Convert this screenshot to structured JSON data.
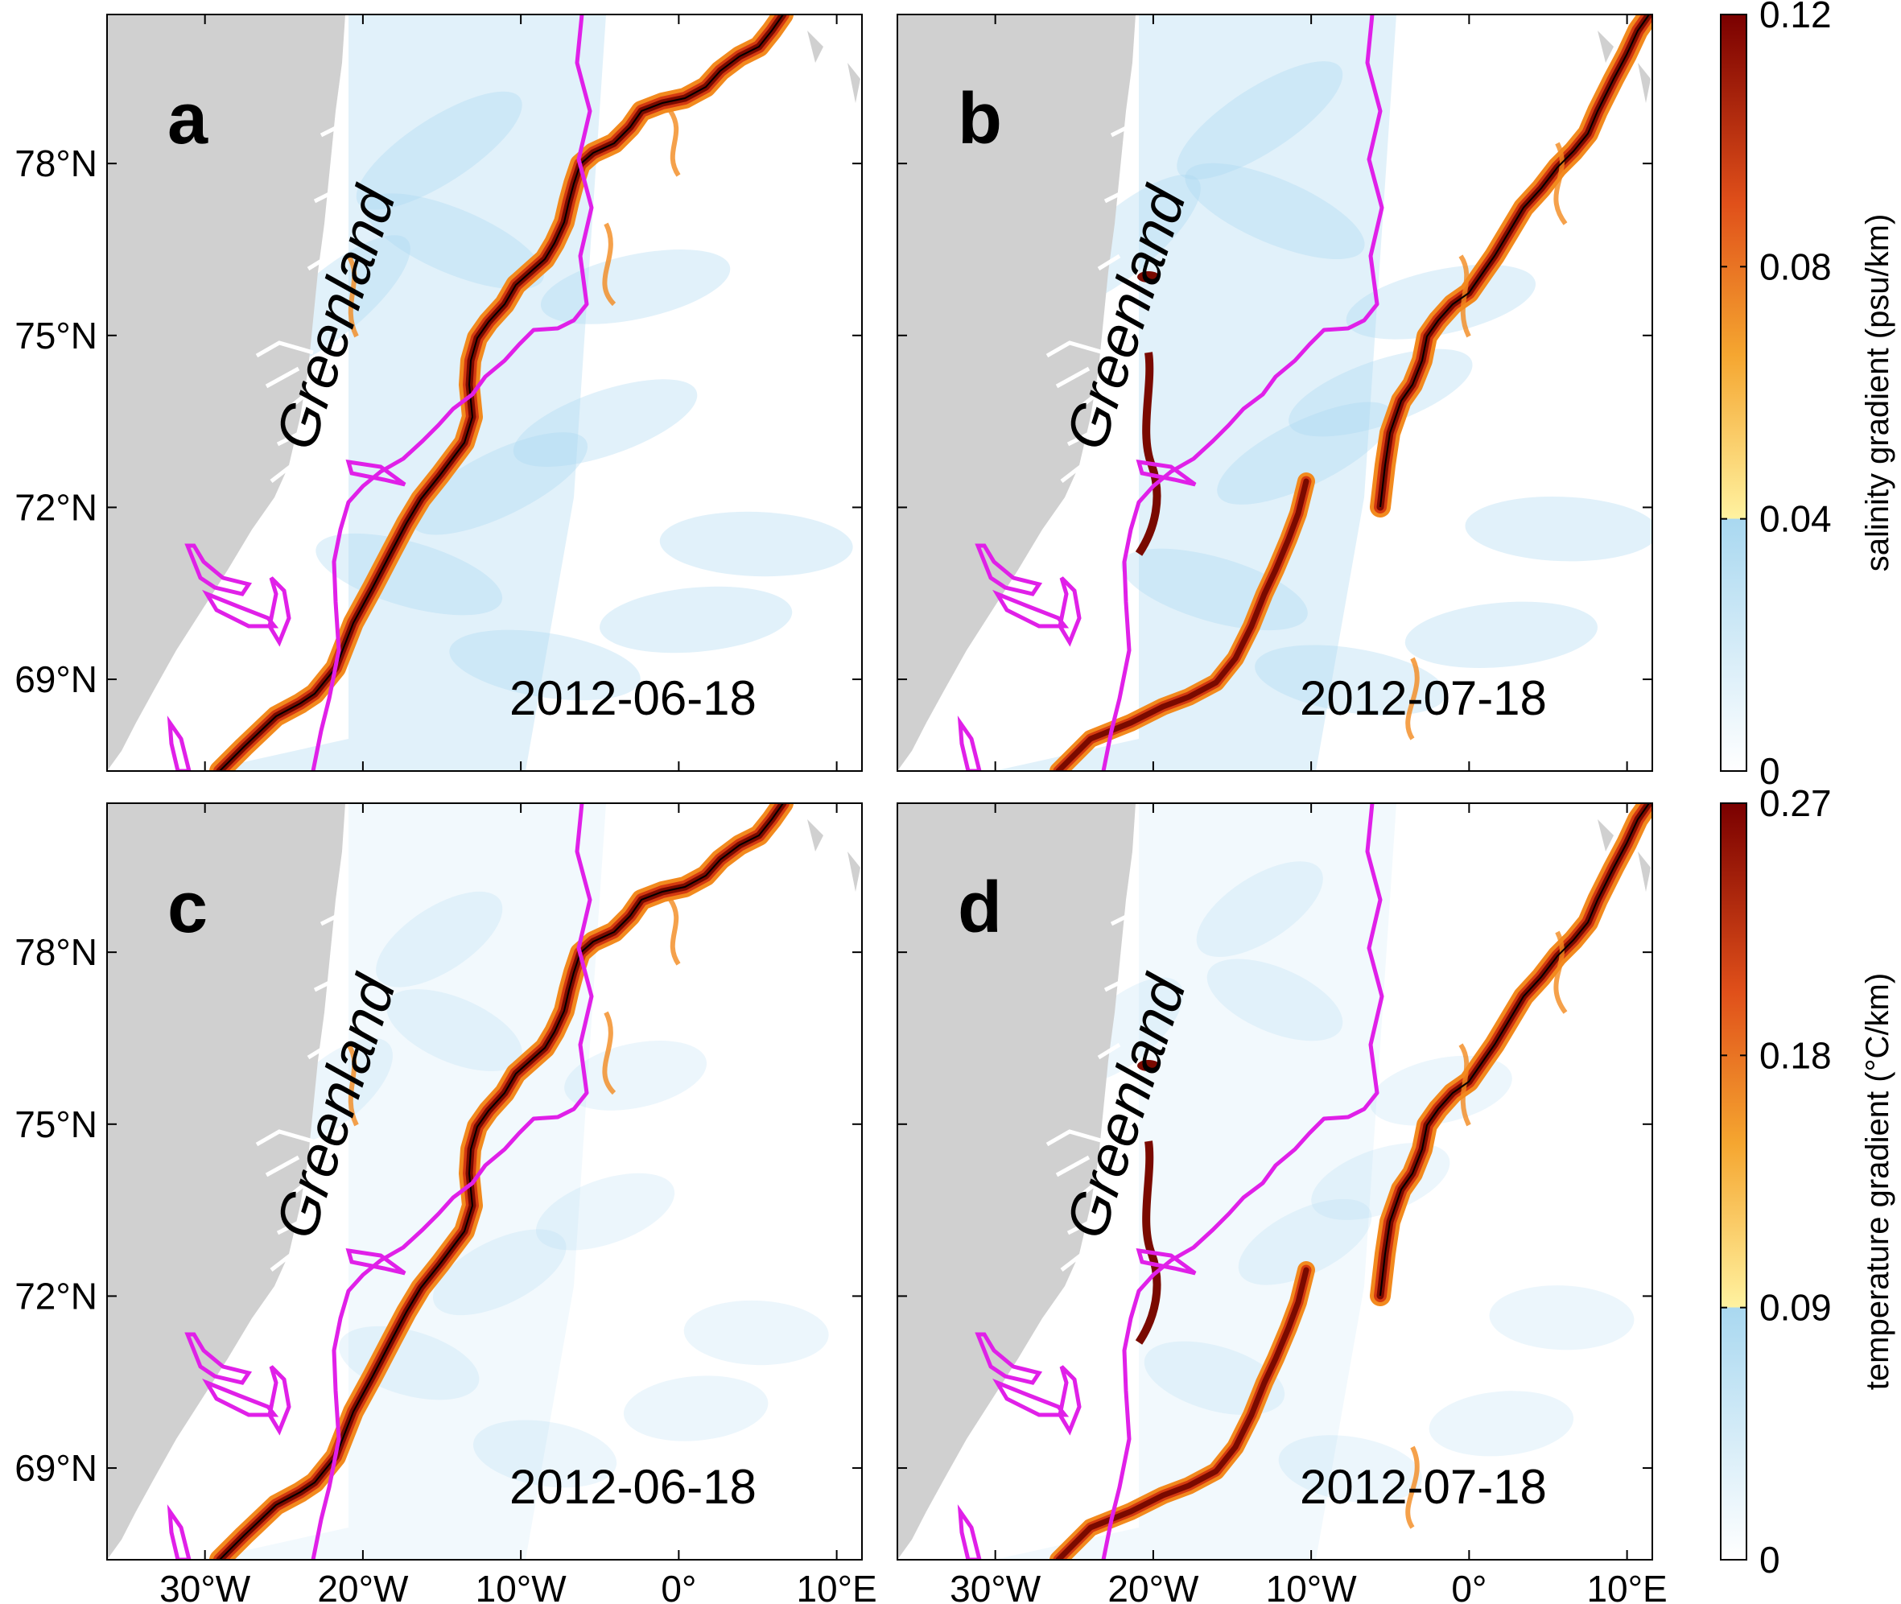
{
  "chart_data": {
    "type": "heatmap",
    "panels": [
      {
        "label": "a",
        "date": "2012-06-18",
        "variable": "salinity gradient",
        "land_label": "Greenland"
      },
      {
        "label": "b",
        "date": "2012-07-18",
        "variable": "salinity gradient",
        "land_label": "Greenland"
      },
      {
        "label": "c",
        "date": "2012-06-18",
        "variable": "temperature gradient",
        "land_label": "Greenland"
      },
      {
        "label": "d",
        "date": "2012-07-18",
        "variable": "temperature gradient",
        "land_label": "Greenland"
      }
    ],
    "y_ticks": [
      "78°N",
      "75°N",
      "72°N",
      "69°N"
    ],
    "y_tick_values": [
      78,
      75,
      72,
      69
    ],
    "ylim": [
      67.4,
      80.6
    ],
    "x_ticks": [
      "30°W",
      "20°W",
      "10°W",
      "0°",
      "10°E"
    ],
    "x_tick_values": [
      -30,
      -20,
      -10,
      0,
      10
    ],
    "xlim": [
      -36.2,
      11.6
    ],
    "colorbars": [
      {
        "label": "salinity gradient (psu/km)",
        "ticks": [
          "0",
          "0.04",
          "0.08",
          "0.12"
        ],
        "tick_values": [
          0,
          0.04,
          0.08,
          0.12
        ],
        "range": [
          0,
          0.12
        ]
      },
      {
        "label": "temperature gradient (°C/km)",
        "ticks": [
          "0",
          "0.09",
          "0.18",
          "0.27"
        ],
        "tick_values": [
          0,
          0.09,
          0.18,
          0.27
        ],
        "range": [
          0,
          0.27
        ]
      }
    ],
    "colors": {
      "land": "#d0d0d0",
      "ice_edge": "#e020e8",
      "front_dark": "#7a0a00",
      "front_red": "#d43a10",
      "front_orange": "#f28a1e",
      "low_gradient": "#a9d8f0",
      "contour": "#000000"
    }
  }
}
